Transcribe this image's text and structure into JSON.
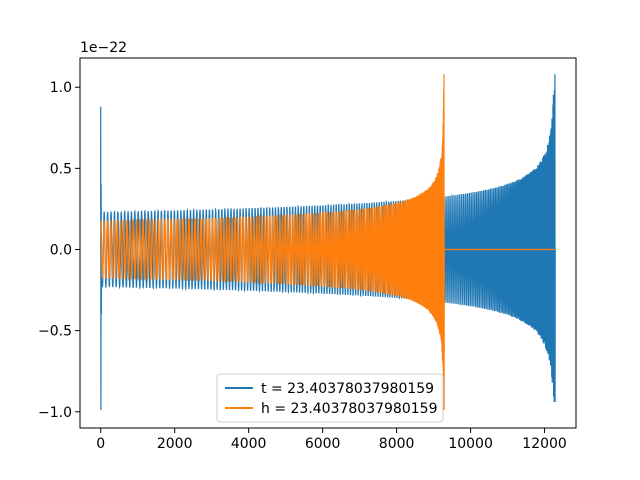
{
  "chart_data": {
    "type": "line",
    "title": "",
    "xlabel": "",
    "ylabel": "",
    "xlim": [
      -560,
      12850
    ],
    "ylim": [
      -1.1,
      1.18
    ],
    "y_scale_label": "1e−22",
    "x_ticks": [
      0,
      2000,
      4000,
      6000,
      8000,
      10000,
      12000
    ],
    "x_tick_labels": [
      "0",
      "2000",
      "4000",
      "6000",
      "8000",
      "10000",
      "12000"
    ],
    "y_ticks": [
      -1.0,
      -0.5,
      0.0,
      0.5,
      1.0
    ],
    "y_tick_labels": [
      "−1.0",
      "−0.5",
      "0.0",
      "0.5",
      "1.0"
    ],
    "grid": false,
    "legend_position": "bottom-center",
    "series": [
      {
        "name": "t = 23.40378037980159",
        "color": "#1f77b4",
        "description": "chirp waveform, envelope from approximately 0.23 to 1.08 (x 1e-22)",
        "start_spike": {
          "x": 0,
          "y_max": 0.88,
          "y_min": -0.99
        },
        "x_start": 0,
        "x_end": 12280,
        "amp_start": 0.23,
        "amp_merger_pos": 1.08,
        "amp_merger_neg": -0.94,
        "merger_x": 12280
      },
      {
        "name": "h = 23.40378037980159",
        "color": "#ff7f0e",
        "description": "chirp waveform, envelope from approximately 0.175 to 1.08 (x 1e-22), flat at 0 after merger",
        "x_start": 0,
        "x_end": 9300,
        "amp_start": 0.175,
        "amp_merger_pos": 1.08,
        "amp_merger_neg": -0.99,
        "merger_x": 9280,
        "flat_until": 12280
      }
    ]
  }
}
